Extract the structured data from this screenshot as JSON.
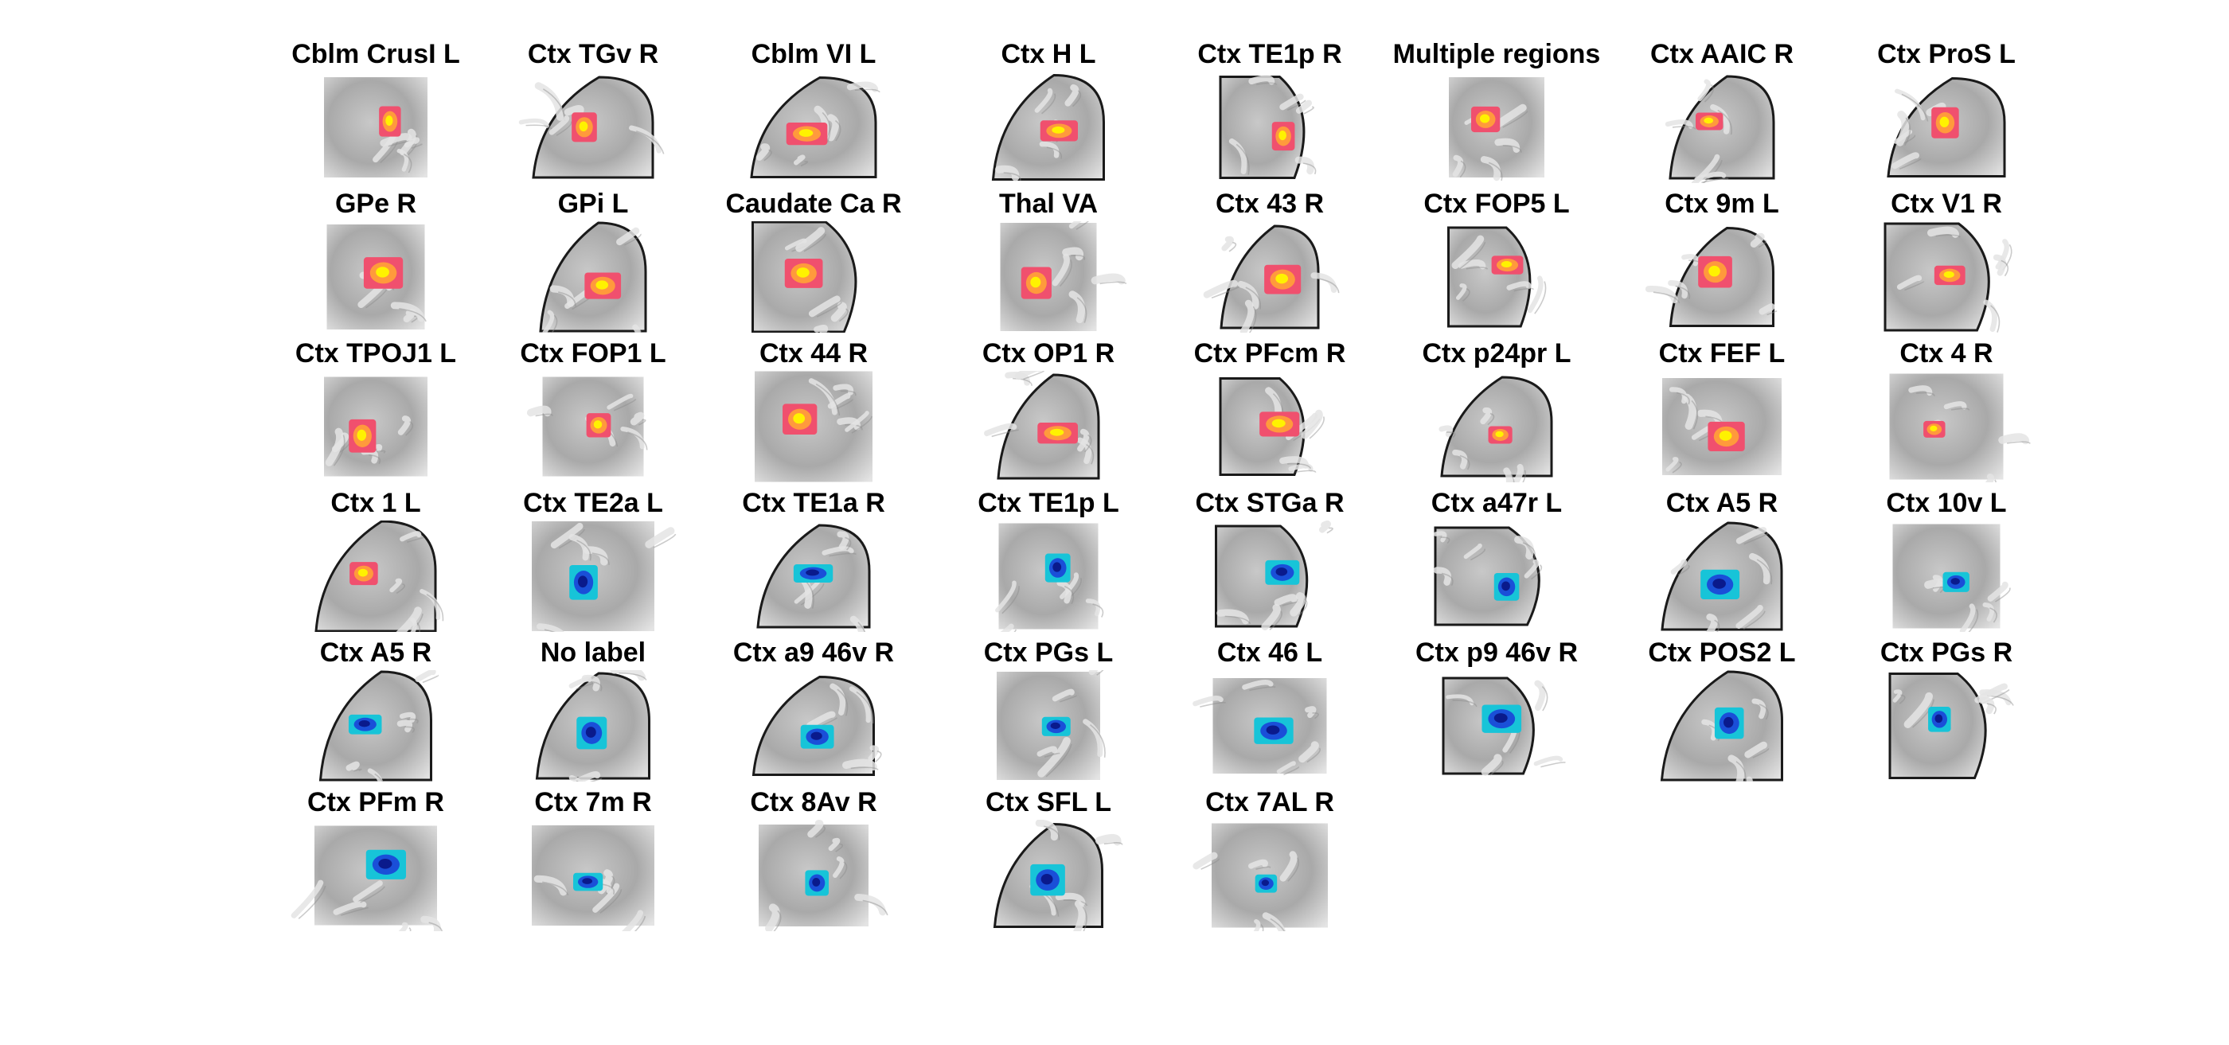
{
  "figure": {
    "rows": [
      [
        {
          "label": "Cblm CrusI L",
          "activation": "positive"
        },
        {
          "label": "Ctx TGv R",
          "activation": "positive"
        },
        {
          "label": "Cblm VI L",
          "activation": "positive"
        },
        {
          "label": "Ctx H L",
          "activation": "positive"
        },
        {
          "label": "Ctx TE1p R",
          "activation": "positive"
        },
        {
          "label": "Multiple regions",
          "activation": "positive"
        },
        {
          "label": "Ctx AAIC R",
          "activation": "positive"
        },
        {
          "label": "Ctx ProS L",
          "activation": "positive"
        }
      ],
      [
        {
          "label": "GPe R",
          "activation": "positive"
        },
        {
          "label": "GPi L",
          "activation": "positive"
        },
        {
          "label": "Caudate Ca R",
          "activation": "positive"
        },
        {
          "label": "Thal VA",
          "activation": "positive"
        },
        {
          "label": "Ctx 43 R",
          "activation": "positive"
        },
        {
          "label": "Ctx FOP5 L",
          "activation": "positive"
        },
        {
          "label": "Ctx 9m L",
          "activation": "positive"
        },
        {
          "label": "Ctx V1 R",
          "activation": "positive"
        }
      ],
      [
        {
          "label": "Ctx TPOJ1 L",
          "activation": "positive"
        },
        {
          "label": "Ctx FOP1 L",
          "activation": "positive"
        },
        {
          "label": "Ctx 44 R",
          "activation": "positive"
        },
        {
          "label": "Ctx OP1 R",
          "activation": "positive"
        },
        {
          "label": "Ctx PFcm R",
          "activation": "positive"
        },
        {
          "label": "Ctx p24pr L",
          "activation": "positive"
        },
        {
          "label": "Ctx FEF L",
          "activation": "positive"
        },
        {
          "label": "Ctx 4 R",
          "activation": "positive"
        }
      ],
      [
        {
          "label": "Ctx 1 L",
          "activation": "positive"
        },
        {
          "label": "Ctx TE2a L",
          "activation": "negative"
        },
        {
          "label": "Ctx TE1a R",
          "activation": "negative"
        },
        {
          "label": "Ctx TE1p L",
          "activation": "negative"
        },
        {
          "label": "Ctx STGa R",
          "activation": "negative"
        },
        {
          "label": "Ctx a47r L",
          "activation": "negative"
        },
        {
          "label": "Ctx A5 R",
          "activation": "negative"
        },
        {
          "label": "Ctx 10v L",
          "activation": "negative"
        }
      ],
      [
        {
          "label": "Ctx A5 R",
          "activation": "negative"
        },
        {
          "label": "No label",
          "activation": "negative"
        },
        {
          "label": "Ctx a9 46v R",
          "activation": "negative"
        },
        {
          "label": "Ctx PGs L",
          "activation": "negative"
        },
        {
          "label": "Ctx 46 L",
          "activation": "negative"
        },
        {
          "label": "Ctx p9 46v R",
          "activation": "negative"
        },
        {
          "label": "Ctx POS2 L",
          "activation": "negative"
        },
        {
          "label": "Ctx PGs R",
          "activation": "negative"
        }
      ],
      [
        {
          "label": "Ctx PFm R",
          "activation": "negative"
        },
        {
          "label": "Ctx 7m R",
          "activation": "negative"
        },
        {
          "label": "Ctx 8Av R",
          "activation": "negative"
        },
        {
          "label": "Ctx SFL L",
          "activation": "negative"
        },
        {
          "label": "Ctx 7AL R",
          "activation": "negative"
        }
      ]
    ]
  },
  "colors": {
    "positive_outer": "#f0506e",
    "positive_mid": "#ff9a3c",
    "positive_core": "#fff200",
    "negative_outer": "#17c4d8",
    "negative_mid": "#1a4fd8",
    "negative_core": "#0a1a8c",
    "brain_light": "#e4e4e4",
    "brain_dark": "#8c8c8c"
  }
}
